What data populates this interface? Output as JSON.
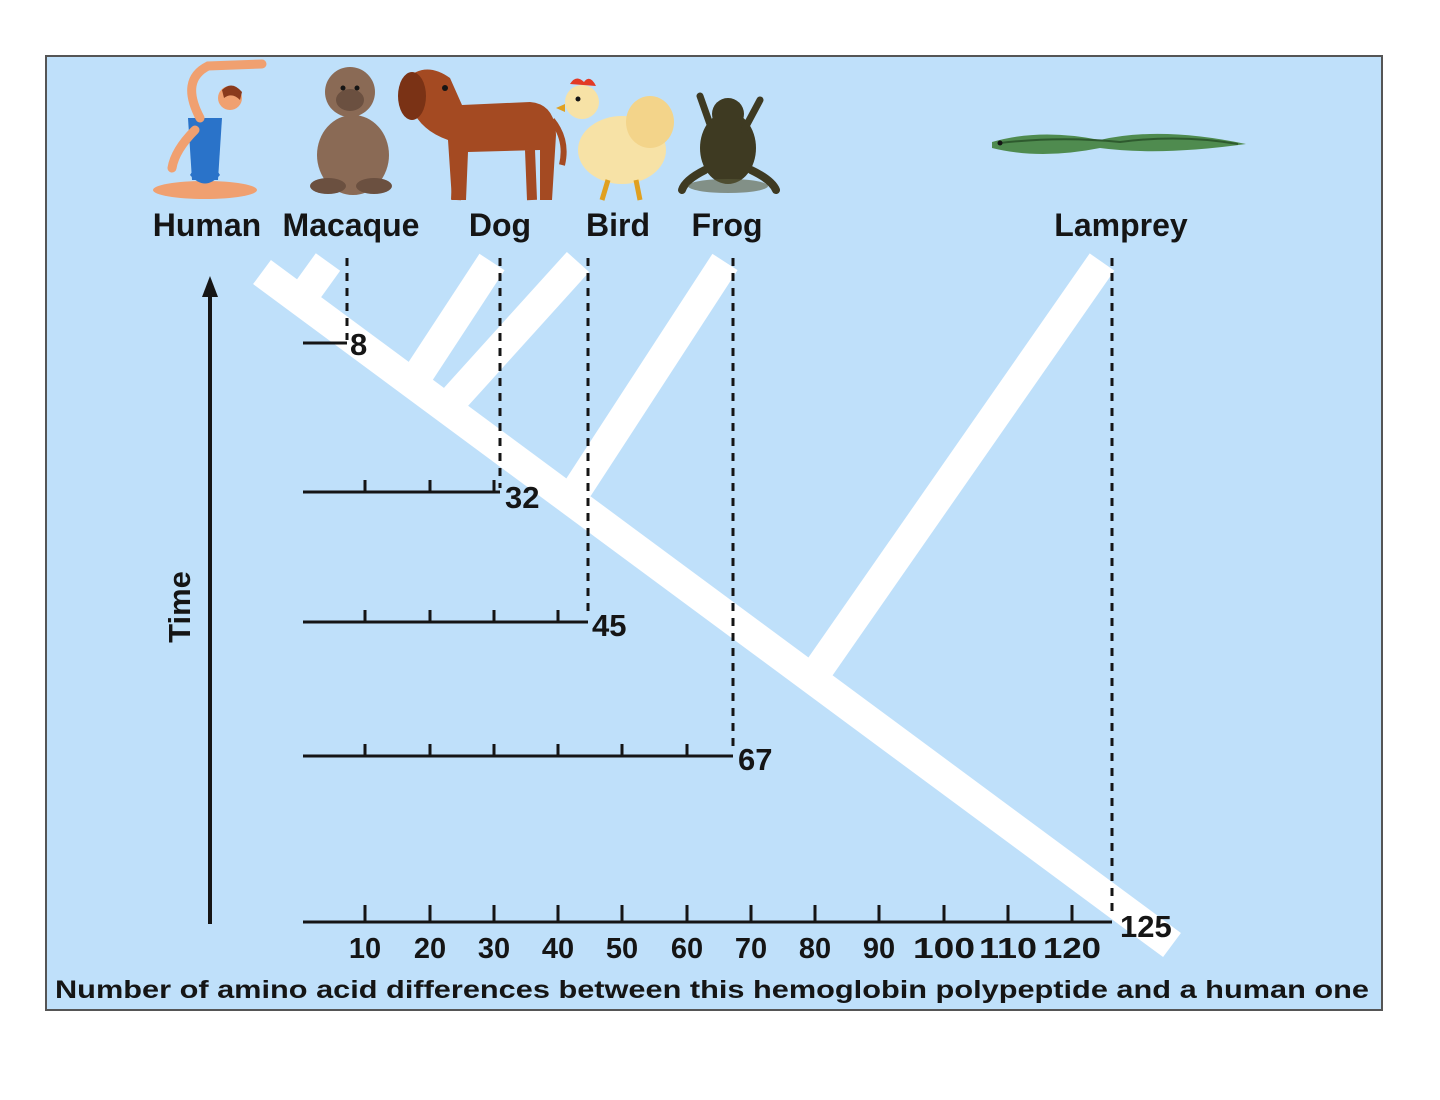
{
  "colors": {
    "panel_background": "#bfe0fa",
    "panel_border": "#555555",
    "tree_branches": "#ffffff",
    "ink": "#151515",
    "human_suit": "#2a73c9",
    "human_skin": "#f0a070",
    "macaque_fur": "#8a6a55",
    "dog_fur": "#a44a22",
    "bird_feathers": "#f7e2a6",
    "bird_comb": "#e23a25",
    "frog_skin": "#3e3a22",
    "lamprey_body": "#4f8b4f"
  },
  "species": [
    {
      "name": "Human",
      "icon": "human-figure-icon"
    },
    {
      "name": "Macaque",
      "icon": "macaque-icon"
    },
    {
      "name": "Dog",
      "icon": "dog-icon"
    },
    {
      "name": "Bird",
      "icon": "bird-icon"
    },
    {
      "name": "Frog",
      "icon": "frog-icon"
    },
    {
      "name": "Lamprey",
      "icon": "lamprey-icon"
    }
  ],
  "time_axis_label": "Time",
  "difference_values": [
    {
      "species": "Macaque",
      "value": 8
    },
    {
      "species": "Dog",
      "value": 32
    },
    {
      "species": "Bird",
      "value": 45
    },
    {
      "species": "Frog",
      "value": 67
    },
    {
      "species": "Lamprey",
      "value": 125
    }
  ],
  "scale_ticks": [
    "10",
    "20",
    "30",
    "40",
    "50",
    "60",
    "70",
    "80",
    "90",
    "100",
    "110",
    "120"
  ],
  "x_axis_label": "Number of amino acid differences between this hemoglobin polypeptide and a human one"
}
